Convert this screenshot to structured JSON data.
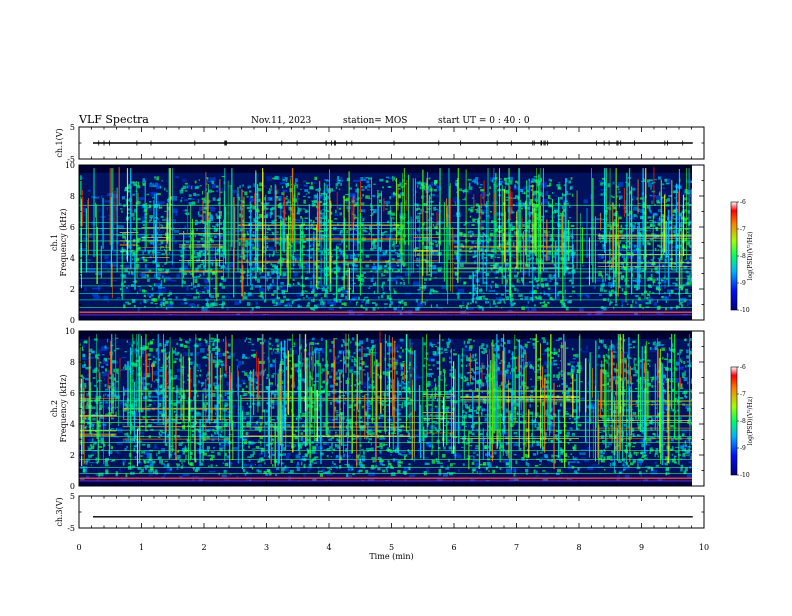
{
  "header": {
    "title": "VLF Spectra",
    "date": "Nov.11, 2023",
    "station": "station= MOS",
    "start": "start  UT =   0 : 40 : 0"
  },
  "colors": {
    "axis": "#000000",
    "background": "#ffffff",
    "spectrogram_base": "#00125e"
  },
  "chart_data": [
    {
      "type": "line",
      "name": "ch1-voltage",
      "ylabel": "ch.1(V)",
      "ylim": [
        -5,
        5
      ],
      "yticks": [
        "5",
        "-5"
      ],
      "xlim": [
        0,
        10
      ],
      "trace_level": 0
    },
    {
      "type": "heatmap",
      "name": "ch1-spectrogram",
      "ylabel": "ch.1\nFrequency (kHz)",
      "ylabel_lines": [
        "ch.1",
        "Frequency (kHz)"
      ],
      "ylim": [
        0,
        10
      ],
      "yticks": [
        "0",
        "2",
        "4",
        "6",
        "8",
        "10"
      ],
      "xlim": [
        0,
        9.82
      ],
      "colorbar": {
        "label": "log(PSD)(V²/Hz)",
        "ticks": [
          "-6",
          "-7",
          "-8",
          "-9",
          "-10"
        ],
        "range": [
          -10,
          -6
        ]
      }
    },
    {
      "type": "heatmap",
      "name": "ch2-spectrogram",
      "ylabel": "ch.2\nFrequency (kHz)",
      "ylabel_lines": [
        "ch.2",
        "Frequency (kHz)"
      ],
      "ylim": [
        0,
        10
      ],
      "yticks": [
        "0",
        "2",
        "4",
        "6",
        "8",
        "10"
      ],
      "xlim": [
        0,
        9.82
      ],
      "colorbar": {
        "label": "log(PSD)(V²/Hz)",
        "ticks": [
          "-6",
          "-7",
          "-8",
          "-9",
          "-10"
        ],
        "range": [
          -10,
          -6
        ]
      }
    },
    {
      "type": "line",
      "name": "ch3-voltage",
      "ylabel": "ch.3(V)",
      "ylim": [
        -5,
        5
      ],
      "yticks": [
        "5",
        "-5"
      ],
      "xlim": [
        0,
        10
      ],
      "trace_level": -1.5
    }
  ],
  "xaxis": {
    "label": "Time  (min)",
    "ticks": [
      "0",
      "1",
      "2",
      "3",
      "4",
      "5",
      "6",
      "7",
      "8",
      "9",
      "10"
    ],
    "range": [
      0,
      10
    ]
  }
}
